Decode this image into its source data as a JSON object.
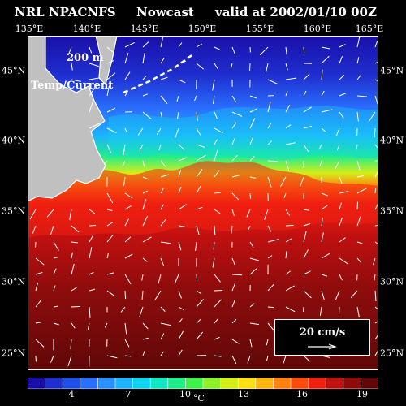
{
  "header": {
    "source": "NRL NPACNFS",
    "product": "Nowcast",
    "valid": "valid at 2002/01/10 00Z"
  },
  "map": {
    "longitude_labels": [
      "135°E",
      "140°E",
      "145°E",
      "150°E",
      "155°E",
      "160°E",
      "165°E"
    ],
    "latitude_labels": [
      "45°N",
      "40°N",
      "35°N",
      "30°N",
      "25°N"
    ],
    "lon_range": [
      135,
      165
    ],
    "lat_range": [
      23,
      47
    ],
    "depth_label": "200 m",
    "field_label": "Temp/Current",
    "land_color": "#c0c0c0",
    "vector_color": "#ffffff"
  },
  "vector_legend": {
    "label": "20 cm/s"
  },
  "colorbar": {
    "tick_labels": [
      "4",
      "7",
      "10",
      "13",
      "16",
      "19"
    ],
    "unit": "°C",
    "min": 1,
    "max": 20,
    "colors": [
      "#1a0fa8",
      "#1f2fd0",
      "#2050ea",
      "#2a70ff",
      "#2a90ff",
      "#1eb4ff",
      "#10d4ee",
      "#10e6c4",
      "#20ee8a",
      "#40f24c",
      "#8cf028",
      "#d4ee1a",
      "#fde012",
      "#ffb410",
      "#ff820e",
      "#ff4c0c",
      "#f02010",
      "#c01010",
      "#900c0c",
      "#600808"
    ]
  }
}
